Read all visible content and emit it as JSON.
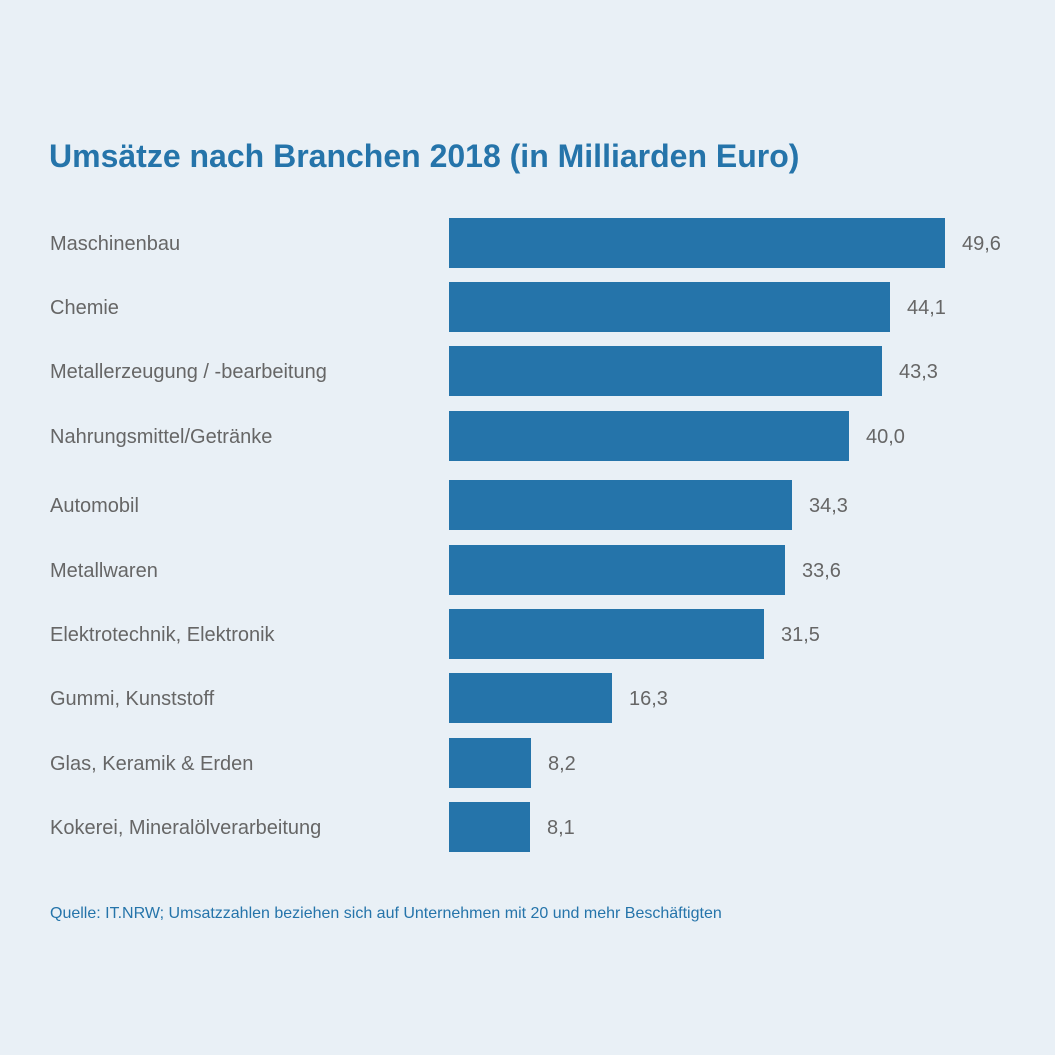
{
  "chart_data": {
    "type": "bar",
    "orientation": "horizontal",
    "title": "Umsätze nach Branchen 2018 (in Milliarden Euro)",
    "categories": [
      "Maschinenbau",
      "Chemie",
      "Metallerzeugung / -bearbeitung",
      "Nahrungsmittel/Getränke",
      "Automobil",
      "Metallwaren",
      "Elektrotechnik, Elektronik",
      "Gummi, Kunststoff",
      "Glas, Keramik & Erden",
      "Kokerei, Mineralölverarbeitung"
    ],
    "values": [
      49.6,
      44.1,
      43.3,
      40.0,
      34.3,
      33.6,
      31.5,
      16.3,
      8.2,
      8.1
    ],
    "value_labels": [
      "49,6",
      "44,1",
      "43,3",
      "40,0",
      "34,3",
      "33,6",
      "31,5",
      "16,3",
      "8,2",
      "8,1"
    ],
    "xlim": [
      0,
      49.6
    ],
    "grid": false,
    "bar_color": "#2574aa",
    "label_color": "#666666",
    "source": "Quelle: IT.NRW; Umsatzzahlen beziehen sich auf Unternehmen mit 20 und mehr Beschäftigten"
  }
}
